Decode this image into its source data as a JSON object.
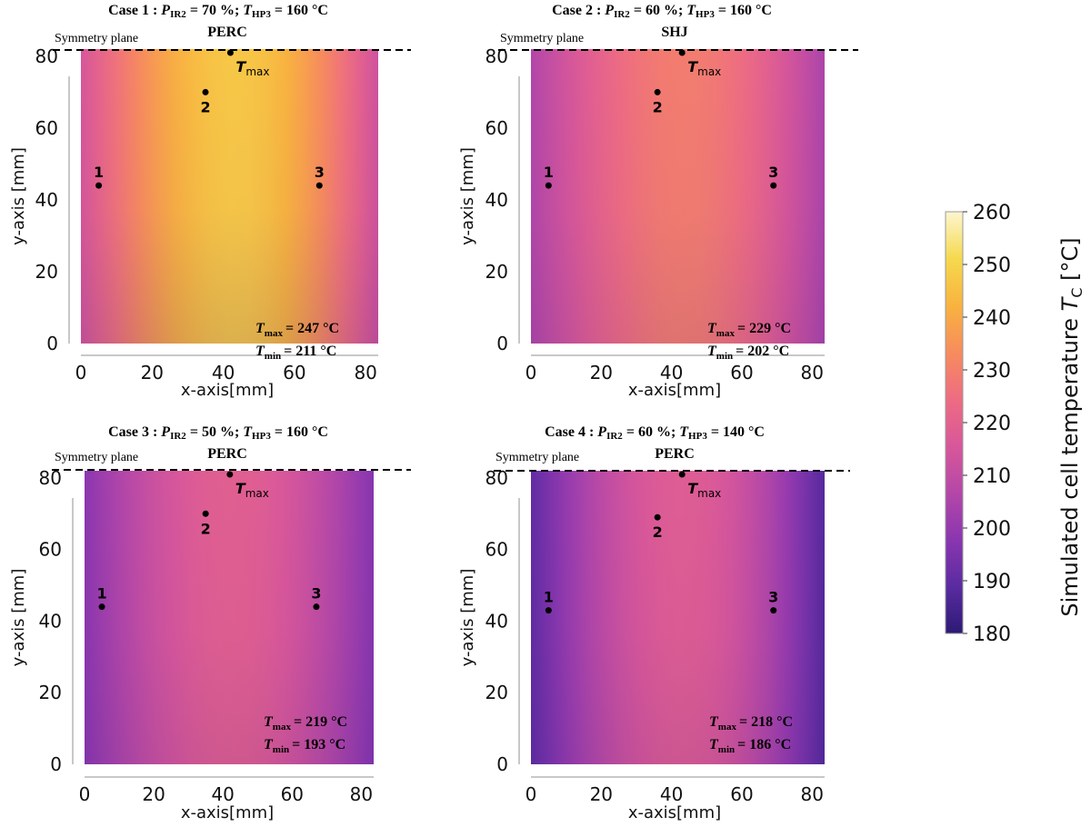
{
  "panels": [
    {
      "case_label": "Case 1",
      "p_ir2": "70 %",
      "t_hp3": "160 °C",
      "cell_type": "PERC",
      "symmetry_label": "Symmetry plane",
      "tmax_marker": "T",
      "tmax_marker_sub": "max",
      "stat_max_value": "= 247 °C",
      "stat_min_value": "= 211 °C",
      "points": [
        {
          "label": "1",
          "x": 5,
          "y": 44
        },
        {
          "label": "2",
          "x": 35,
          "y": 70
        },
        {
          "label": "3",
          "x": 67,
          "y": 44
        }
      ],
      "tmax_point": {
        "x": 42,
        "y": 82
      },
      "field": {
        "edge_left": 215,
        "center": 247,
        "edge_right": 213,
        "bottom_drop": 8,
        "center_x": 43
      }
    },
    {
      "case_label": "Case 2",
      "p_ir2": "60 %",
      "t_hp3": "160 °C",
      "cell_type": "SHJ",
      "symmetry_label": "Symmetry plane",
      "tmax_marker": "T",
      "tmax_marker_sub": "max",
      "stat_max_value": "= 229 °C",
      "stat_min_value": "= 202 °C",
      "points": [
        {
          "label": "1",
          "x": 5,
          "y": 44
        },
        {
          "label": "2",
          "x": 36,
          "y": 70
        },
        {
          "label": "3",
          "x": 69,
          "y": 44
        }
      ],
      "tmax_point": {
        "x": 43,
        "y": 82
      },
      "field": {
        "edge_left": 206,
        "center": 229,
        "edge_right": 205,
        "bottom_drop": 6,
        "center_x": 43
      }
    },
    {
      "case_label": "Case 3",
      "p_ir2": "50 %",
      "t_hp3": "160 °C",
      "cell_type": "PERC",
      "symmetry_label": "Symmetry plane",
      "tmax_marker": "T",
      "tmax_marker_sub": "max",
      "stat_max_value": "= 219 °C",
      "stat_min_value": "= 193 °C",
      "points": [
        {
          "label": "1",
          "x": 5,
          "y": 44
        },
        {
          "label": "2",
          "x": 35,
          "y": 70
        },
        {
          "label": "3",
          "x": 67,
          "y": 44
        }
      ],
      "tmax_point": {
        "x": 42,
        "y": 82
      },
      "field": {
        "edge_left": 198,
        "center": 219,
        "edge_right": 197,
        "bottom_drop": 6,
        "center_x": 42
      }
    },
    {
      "case_label": "Case 4",
      "p_ir2": "60 %",
      "t_hp3": "140 °C",
      "cell_type": "PERC",
      "symmetry_label": "Symmetry plane",
      "tmax_marker": "T",
      "tmax_marker_sub": "max",
      "stat_max_value": "= 218 °C",
      "stat_min_value": "= 186 °C",
      "points": [
        {
          "label": "1",
          "x": 5,
          "y": 43
        },
        {
          "label": "2",
          "x": 36,
          "y": 69
        },
        {
          "label": "3",
          "x": 69,
          "y": 43
        }
      ],
      "tmax_point": {
        "x": 43,
        "y": 82
      },
      "field": {
        "edge_left": 190,
        "center": 218,
        "edge_right": 188,
        "bottom_drop": 6,
        "center_x": 43
      }
    }
  ],
  "chart_data": {
    "type": "heatmap",
    "xlabel": "x-axis[mm]",
    "ylabel": "y-axis [mm]",
    "xlim": [
      0,
      82
    ],
    "ylim": [
      0,
      82
    ],
    "xticks": [
      "0",
      "20",
      "40",
      "60",
      "80"
    ],
    "yticks": [
      "0",
      "20",
      "40",
      "60",
      "80"
    ],
    "colorbar": {
      "label": "Simulated cell temperature",
      "label_symbol": "T",
      "label_sub": "C",
      "label_unit": "[°C]",
      "min": 180,
      "max": 260,
      "ticks": [
        "180",
        "190",
        "200",
        "210",
        "220",
        "230",
        "240",
        "250",
        "260"
      ],
      "colormap": "plasma",
      "stops": [
        "#2c1a75",
        "#5a2ba0",
        "#8a36b0",
        "#b447a8",
        "#d8579a",
        "#ee6c82",
        "#f78c5d",
        "#f8b33f",
        "#f6d94e",
        "#fdf6cf"
      ]
    },
    "series": [
      {
        "name": "Case 1",
        "Tmax": 247,
        "Tmin": 211
      },
      {
        "name": "Case 2",
        "Tmax": 229,
        "Tmin": 202
      },
      {
        "name": "Case 3",
        "Tmax": 219,
        "Tmin": 193
      },
      {
        "name": "Case 4",
        "Tmax": 218,
        "Tmin": 186
      }
    ]
  }
}
